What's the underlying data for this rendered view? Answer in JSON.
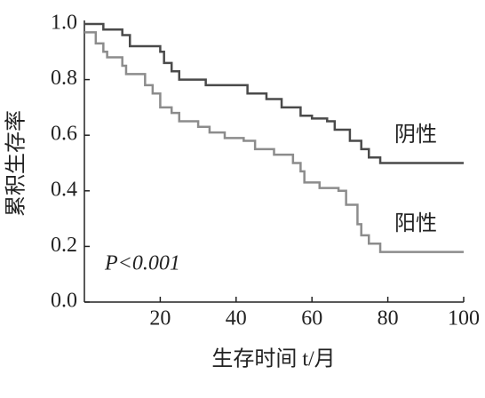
{
  "chart_data": {
    "type": "step",
    "ylabel": "累积生存率",
    "xlabel": "生存时间 t/月",
    "annotation": "P<0.001",
    "xlim": [
      0,
      100
    ],
    "xticks": [
      20,
      40,
      60,
      80,
      100
    ],
    "ylim": [
      0,
      1
    ],
    "yticks": [
      {
        "value": 0,
        "label": "0.0"
      },
      {
        "value": 0.2,
        "label": "0.2"
      },
      {
        "value": 0.4,
        "label": "0.4"
      },
      {
        "value": 0.6,
        "label": "0.6"
      },
      {
        "value": 0.8,
        "label": "0.8"
      },
      {
        "value": 1,
        "label": "1.0"
      }
    ],
    "series": [
      {
        "name": "阴性",
        "color": "#4a4a4a",
        "x": [
          0,
          5,
          10,
          12,
          20,
          21,
          23,
          25,
          32,
          43,
          48,
          52,
          57,
          60,
          64,
          66,
          70,
          73,
          75,
          78,
          100
        ],
        "values": [
          1.0,
          0.98,
          0.96,
          0.92,
          0.9,
          0.86,
          0.83,
          0.8,
          0.78,
          0.75,
          0.73,
          0.7,
          0.67,
          0.66,
          0.65,
          0.62,
          0.58,
          0.55,
          0.52,
          0.5,
          0.5
        ]
      },
      {
        "name": "阳性",
        "color": "#8c8c8c",
        "x": [
          0,
          3,
          5,
          6,
          10,
          11,
          16,
          18,
          20,
          23,
          25,
          30,
          33,
          37,
          42,
          45,
          50,
          55,
          57,
          58,
          62,
          67,
          69,
          72,
          73,
          75,
          78,
          100
        ],
        "values": [
          0.97,
          0.93,
          0.9,
          0.88,
          0.85,
          0.82,
          0.78,
          0.75,
          0.7,
          0.68,
          0.65,
          0.63,
          0.61,
          0.59,
          0.58,
          0.55,
          0.53,
          0.5,
          0.47,
          0.43,
          0.41,
          0.4,
          0.35,
          0.28,
          0.24,
          0.21,
          0.18,
          0.18
        ]
      }
    ]
  }
}
